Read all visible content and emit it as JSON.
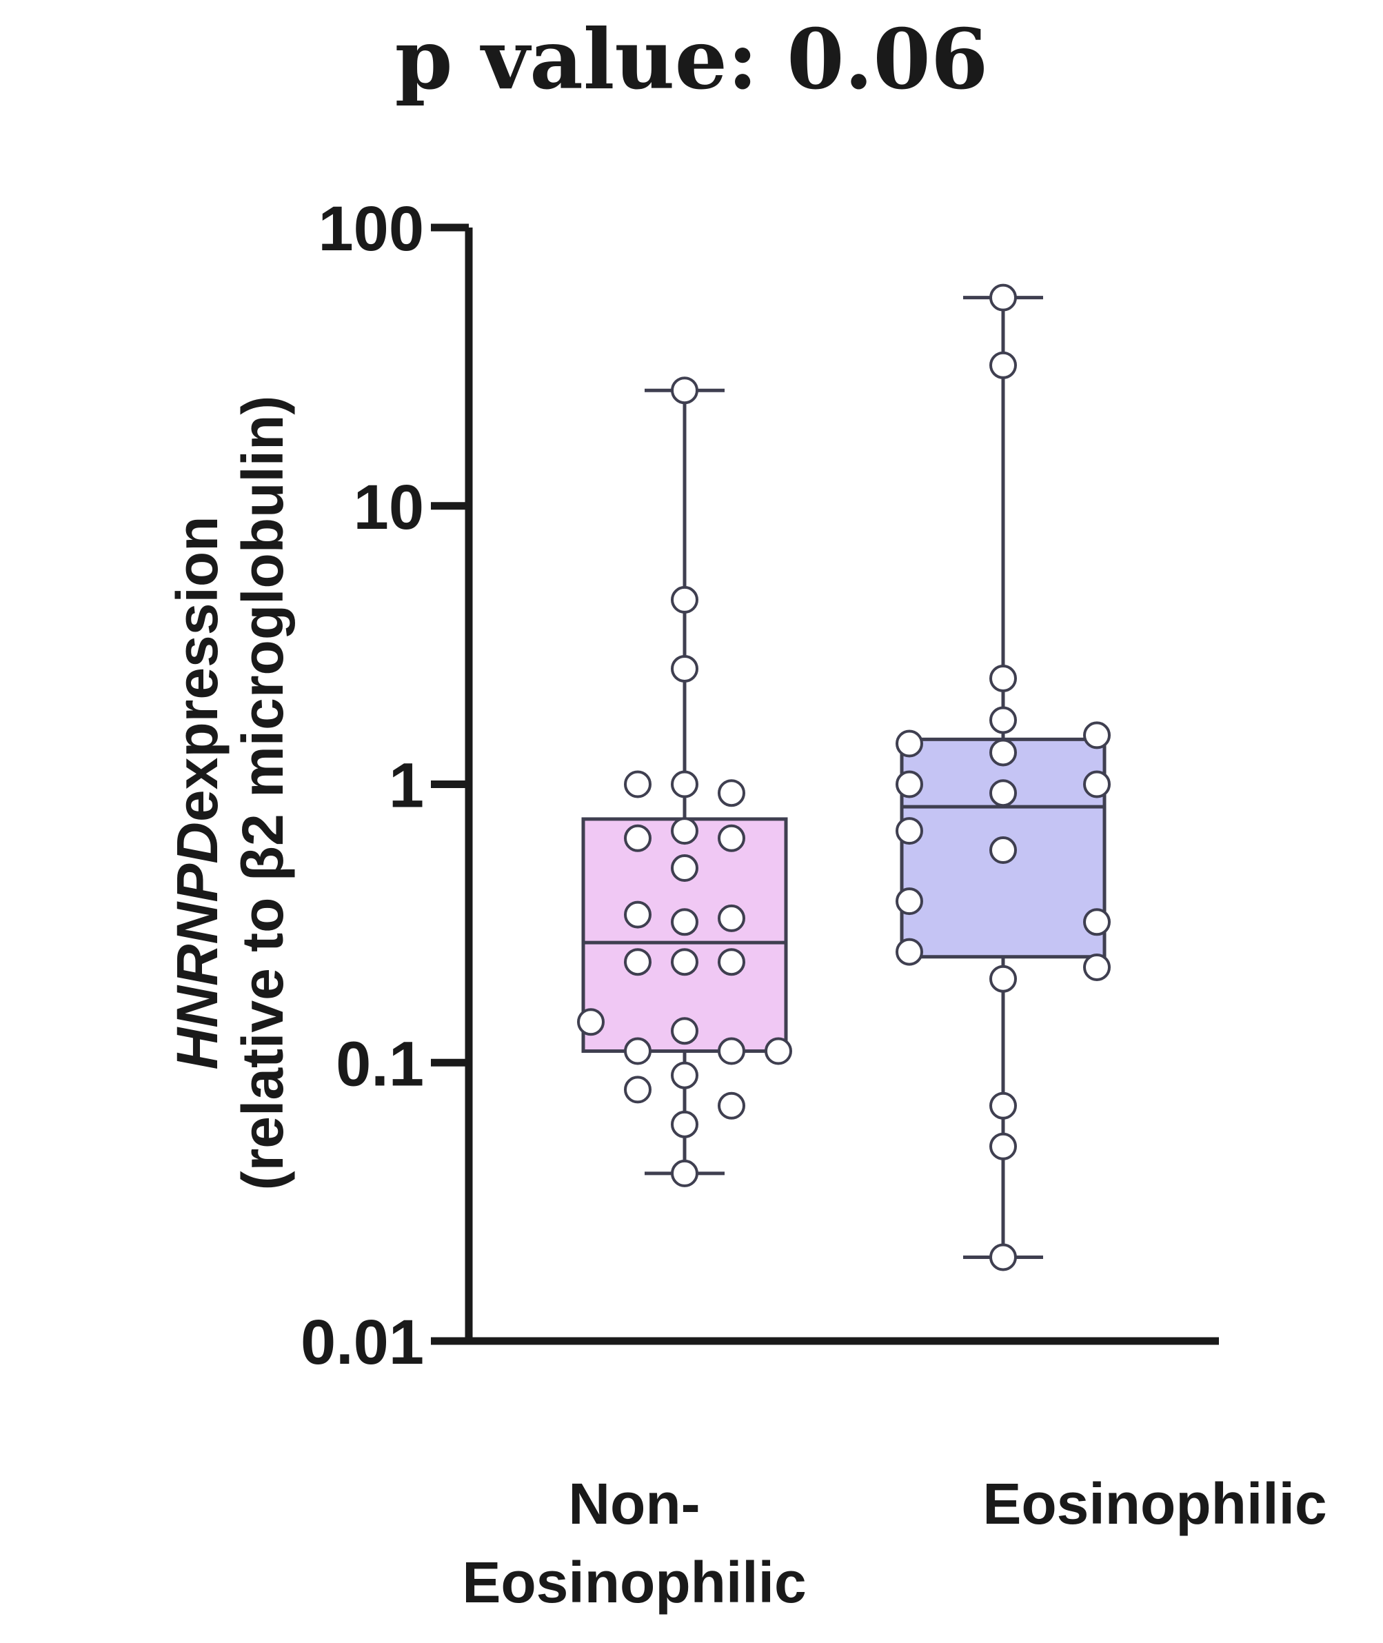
{
  "chart_data": {
    "type": "box",
    "title": "p value: 0.06",
    "ylabel_gene": "HNRNPD",
    "ylabel_rest": "expression",
    "ylabel_line2": "(relative to β2 microglobulin)",
    "yscale": "log",
    "ylim": [
      0.01,
      100
    ],
    "yticks": [
      {
        "value": 100,
        "label": "100"
      },
      {
        "value": 10,
        "label": "10"
      },
      {
        "value": 1,
        "label": "1"
      },
      {
        "value": 0.1,
        "label": "0.1"
      },
      {
        "value": 0.01,
        "label": "0.01"
      }
    ],
    "groups": [
      {
        "key": "non",
        "label_lines": [
          "Non-",
          "Eosinophilic"
        ],
        "fill": "#f0c8f4",
        "min": 0.04,
        "q1": 0.11,
        "median": 0.27,
        "q3": 0.75,
        "max": 26,
        "points": [
          [
            0,
            26
          ],
          [
            0,
            4.6
          ],
          [
            0,
            2.6
          ],
          [
            -1,
            1.0
          ],
          [
            0,
            1.0
          ],
          [
            1,
            0.93
          ],
          [
            -1,
            0.64
          ],
          [
            0,
            0.68
          ],
          [
            1,
            0.64
          ],
          [
            0,
            0.5
          ],
          [
            -1,
            0.34
          ],
          [
            0,
            0.32
          ],
          [
            1,
            0.33
          ],
          [
            -1,
            0.23
          ],
          [
            0,
            0.23
          ],
          [
            1,
            0.23
          ],
          [
            -2,
            0.14
          ],
          [
            0,
            0.13
          ],
          [
            -1,
            0.11
          ],
          [
            1,
            0.11
          ],
          [
            2,
            0.11
          ],
          [
            0,
            0.09
          ],
          [
            -1,
            0.08
          ],
          [
            1,
            0.07
          ],
          [
            0,
            0.06
          ],
          [
            0,
            0.04
          ]
        ]
      },
      {
        "key": "eos",
        "label_lines": [
          "Eosinophilic"
        ],
        "fill": "#c5c4f4",
        "min": 0.02,
        "q1": 0.24,
        "median": 0.83,
        "q3": 1.45,
        "max": 56,
        "points": [
          [
            0,
            56
          ],
          [
            0,
            32
          ],
          [
            0,
            2.4
          ],
          [
            0,
            1.7
          ],
          [
            -2,
            1.4
          ],
          [
            0,
            1.3
          ],
          [
            2,
            1.5
          ],
          [
            -2,
            1.0
          ],
          [
            0,
            0.93
          ],
          [
            2,
            1.0
          ],
          [
            -2,
            0.68
          ],
          [
            0,
            0.58
          ],
          [
            -2,
            0.38
          ],
          [
            2,
            0.32
          ],
          [
            -2,
            0.25
          ],
          [
            0,
            0.2
          ],
          [
            2,
            0.22
          ],
          [
            0,
            0.07
          ],
          [
            0,
            0.05
          ],
          [
            0,
            0.02
          ]
        ]
      }
    ],
    "grid": false,
    "legend": "none"
  }
}
